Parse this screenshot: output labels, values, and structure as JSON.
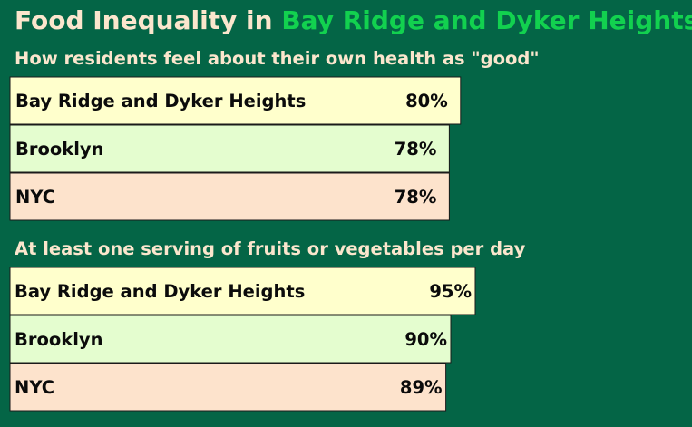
{
  "title": {
    "prefix": "Food Inequality in",
    "highlight": "Bay Ridge and Dyker Heights"
  },
  "colors": {
    "background": "#046546",
    "title_text": "#fbe6cd",
    "title_highlight": "#12d14f",
    "bar_colors": [
      "#ffffcc",
      "#e4fdcf",
      "#fde3cc"
    ],
    "bar_border": "#1a1a1a",
    "bar_text": "#0b0b0b"
  },
  "chart_data": [
    {
      "type": "bar",
      "title": "How residents feel about their own health as \"good\"",
      "categories": [
        "Bay Ridge and Dyker Heights",
        "Brooklyn",
        "NYC"
      ],
      "values": [
        80,
        78,
        78
      ],
      "value_labels": [
        "80%",
        "78%",
        "78%"
      ],
      "unit": "%"
    },
    {
      "type": "bar",
      "title": "At least one serving of fruits or vegetables per day",
      "categories": [
        "Bay Ridge and Dyker Heights",
        "Brooklyn",
        "NYC"
      ],
      "values": [
        95,
        90,
        89
      ],
      "value_labels": [
        "95%",
        "90%",
        "89%"
      ],
      "unit": "%"
    }
  ]
}
